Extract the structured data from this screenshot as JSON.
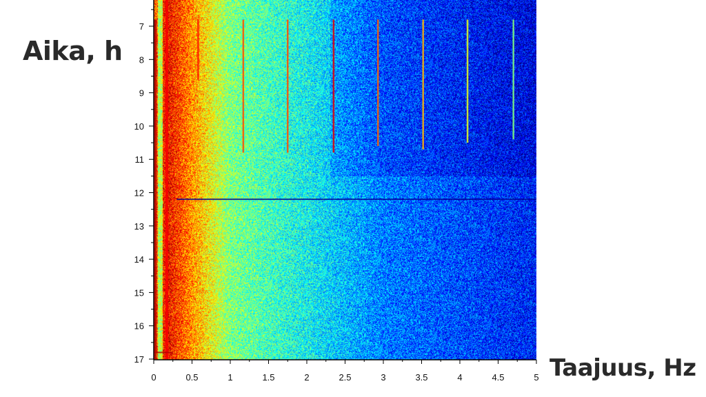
{
  "chart_data": {
    "type": "heatmap",
    "title": "",
    "xlabel": "Taajuus, Hz",
    "ylabel": "Aika, h",
    "xlim": [
      0,
      5
    ],
    "ylim": [
      6.2,
      17
    ],
    "y_inverted": true,
    "colormap": "jet",
    "xticks": [
      "0",
      "0.5",
      "1",
      "1.5",
      "2",
      "2.5",
      "3",
      "3.5",
      "4",
      "4.5",
      "5"
    ],
    "yticks": [
      "7",
      "8",
      "9",
      "10",
      "11",
      "12",
      "13",
      "14",
      "15",
      "16",
      "17"
    ],
    "grid": false,
    "background_intensity": {
      "description_levels": [
        {
          "freq": 0,
          "level": 0.75
        },
        {
          "freq": 0.17,
          "level": 0.88
        },
        {
          "freq": 1,
          "level": 0.5
        },
        {
          "freq": 2,
          "level": 0.38
        },
        {
          "freq": 3,
          "level": 0.25
        },
        {
          "freq": 5,
          "level": 0.15
        }
      ]
    },
    "vertical_lines": [
      {
        "freq": 0.02,
        "t_start": 6.8,
        "t_end": 17,
        "level": 0.95
      },
      {
        "freq": 0.17,
        "t_start": 6.2,
        "t_end": 17,
        "level": 0.88
      },
      {
        "freq": 0.58,
        "t_start": 6.8,
        "t_end": 8.6,
        "level": 0.85
      },
      {
        "freq": 1.17,
        "t_start": 6.8,
        "t_end": 10.8,
        "level": 0.8
      },
      {
        "freq": 1.75,
        "t_start": 6.8,
        "t_end": 10.8,
        "level": 0.8
      },
      {
        "freq": 2.35,
        "t_start": 6.8,
        "t_end": 10.8,
        "level": 0.9
      },
      {
        "freq": 2.93,
        "t_start": 6.8,
        "t_end": 10.6,
        "level": 0.78
      },
      {
        "freq": 3.52,
        "t_start": 6.8,
        "t_end": 10.7,
        "level": 0.7
      },
      {
        "freq": 4.1,
        "t_start": 6.8,
        "t_end": 10.5,
        "level": 0.6
      },
      {
        "freq": 4.7,
        "t_start": 6.8,
        "t_end": 10.4,
        "level": 0.5
      }
    ],
    "horizontal_lines": [
      {
        "time": 12.2,
        "f_start": 0.3,
        "f_end": 5,
        "level": 0.02
      },
      {
        "time": 16.8,
        "f_start": 0,
        "f_end": 0.25,
        "level": 0.95
      }
    ]
  }
}
